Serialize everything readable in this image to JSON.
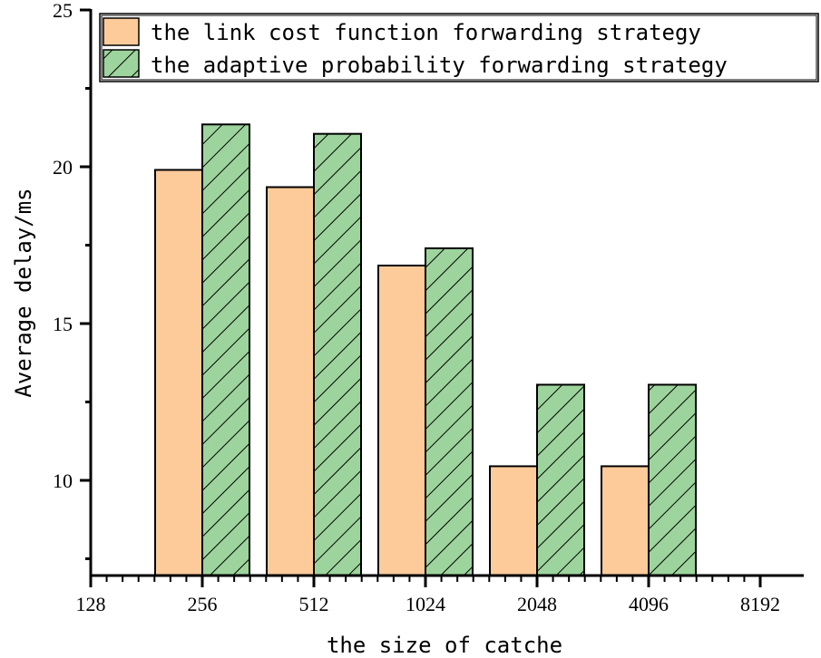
{
  "chart_data": {
    "type": "bar",
    "title": "",
    "xlabel": "the size of catche",
    "ylabel": "Average delay/ms",
    "x_tick_labels": [
      "128",
      "256",
      "512",
      "1024",
      "2048",
      "4096",
      "8192"
    ],
    "categories": [
      "256",
      "512",
      "1024",
      "2048",
      "4096"
    ],
    "y_ticks": [
      10,
      15,
      20,
      25
    ],
    "ylim": [
      7,
      25
    ],
    "grid": false,
    "legend_position": "top-right",
    "series": [
      {
        "name": "the link cost function forwarding strategy",
        "color": "#FDCB9A",
        "pattern": "solid",
        "values": [
          19.9,
          19.35,
          16.85,
          10.45,
          10.45
        ]
      },
      {
        "name": "the adaptive probability forwarding strategy",
        "color": "#9DD49D",
        "pattern": "diagonal-hatch",
        "values": [
          21.35,
          21.05,
          17.4,
          13.05,
          13.05
        ]
      }
    ]
  },
  "legend": {
    "item1": "the link cost function forwarding strategy",
    "item2": "the adaptive probability forwarding strategy"
  },
  "axes": {
    "xlabel": "the size of catche",
    "ylabel": "Average delay/ms",
    "x_ticks": [
      "128",
      "256",
      "512",
      "1024",
      "2048",
      "4096",
      "8192"
    ],
    "y_ticks": [
      "10",
      "15",
      "20",
      "25"
    ]
  }
}
